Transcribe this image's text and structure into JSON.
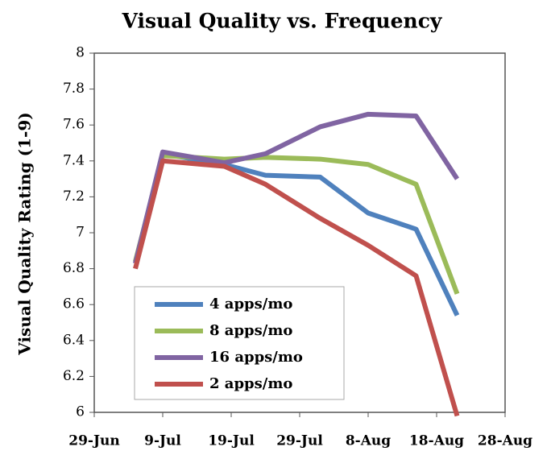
{
  "chart_data": {
    "type": "line",
    "title": "Visual Quality vs. Frequency",
    "y_label": "Visual Quality Rating (1-9)",
    "x": [
      "07-05",
      "07-09",
      "07-18",
      "07-24",
      "08-01",
      "08-08",
      "08-15",
      "08-21"
    ],
    "series": [
      {
        "name": "4 apps/mo",
        "color": "#4f81bd",
        "values": [
          6.83,
          7.44,
          7.38,
          7.32,
          7.31,
          7.11,
          7.02,
          6.54
        ]
      },
      {
        "name": "8 apps/mo",
        "color": "#9bbb59",
        "values": [
          6.84,
          7.43,
          7.41,
          7.42,
          7.41,
          7.38,
          7.27,
          6.66
        ]
      },
      {
        "name": "16 apps/mo",
        "color": "#8064a2",
        "values": [
          6.83,
          7.45,
          7.39,
          7.44,
          7.59,
          7.66,
          7.65,
          7.3
        ]
      },
      {
        "name": "2 apps/mo",
        "color": "#c0504d",
        "values": [
          6.8,
          7.4,
          7.37,
          7.27,
          7.08,
          6.93,
          6.76,
          5.98
        ]
      }
    ],
    "xlim": [
      "06-29",
      "08-28"
    ],
    "xticks": [
      {
        "value": "06-29",
        "label": "29-Jun"
      },
      {
        "value": "07-09",
        "label": "9-Jul"
      },
      {
        "value": "07-19",
        "label": "19-Jul"
      },
      {
        "value": "07-29",
        "label": "29-Jul"
      },
      {
        "value": "08-08",
        "label": "8-Aug"
      },
      {
        "value": "08-18",
        "label": "18-Aug"
      },
      {
        "value": "08-28",
        "label": "28-Aug"
      }
    ],
    "ylim": [
      6,
      8
    ],
    "yticks": [
      6,
      6.2,
      6.4,
      6.6,
      6.8,
      7,
      7.2,
      7.4,
      7.6,
      7.8,
      8
    ],
    "grid": false
  }
}
